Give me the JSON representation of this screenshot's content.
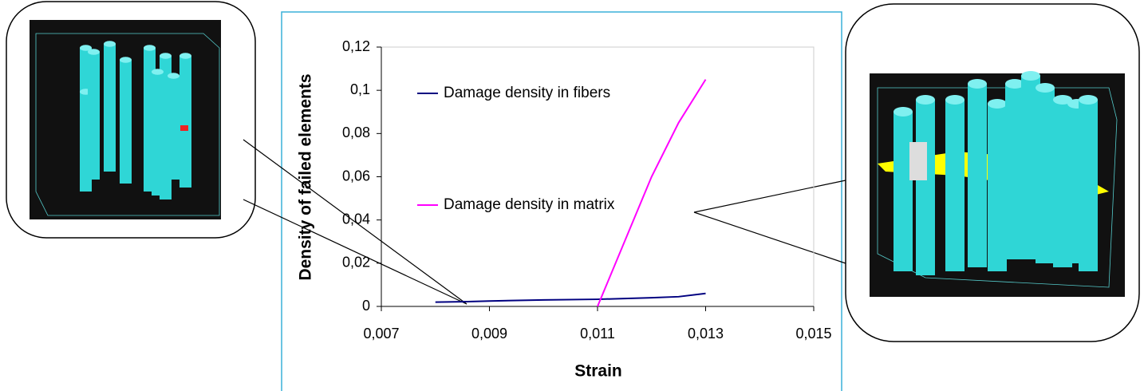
{
  "chart_data": {
    "type": "line",
    "xlabel": "Strain",
    "ylabel": "Density of failed elements",
    "xlim": [
      0.007,
      0.015
    ],
    "xticks": [
      {
        "value": 0.007,
        "label": "0,007"
      },
      {
        "value": 0.009,
        "label": "0,009"
      },
      {
        "value": 0.011,
        "label": "0,011"
      },
      {
        "value": 0.013,
        "label": "0,013"
      },
      {
        "value": 0.015,
        "label": "0,015"
      }
    ],
    "ylim": [
      0,
      0.12
    ],
    "yticks": [
      0,
      {
        "value": 0.02,
        "label": "0,02"
      },
      {
        "value": 0.04,
        "label": "0,04"
      },
      {
        "value": 0.06,
        "label": "0,06"
      },
      {
        "value": 0.08,
        "label": "0,08"
      },
      {
        "value": 0.1,
        "label": "0,1"
      },
      {
        "value": 0.12,
        "label": "0,12"
      }
    ],
    "series": [
      {
        "name": "Damage density in fibers",
        "color": "#000080",
        "x": [
          0.008,
          0.0086,
          0.009,
          0.01,
          0.011,
          0.012,
          0.0125,
          0.013
        ],
        "values": [
          0.002,
          0.0022,
          0.0025,
          0.003,
          0.0033,
          0.004,
          0.0045,
          0.006
        ]
      },
      {
        "name": "Damage density in matrix",
        "color": "#ff00ff",
        "x": [
          0.011,
          0.0115,
          0.012,
          0.0125,
          0.013
        ],
        "values": [
          0,
          0.03,
          0.06,
          0.085,
          0.105
        ]
      }
    ]
  }
}
